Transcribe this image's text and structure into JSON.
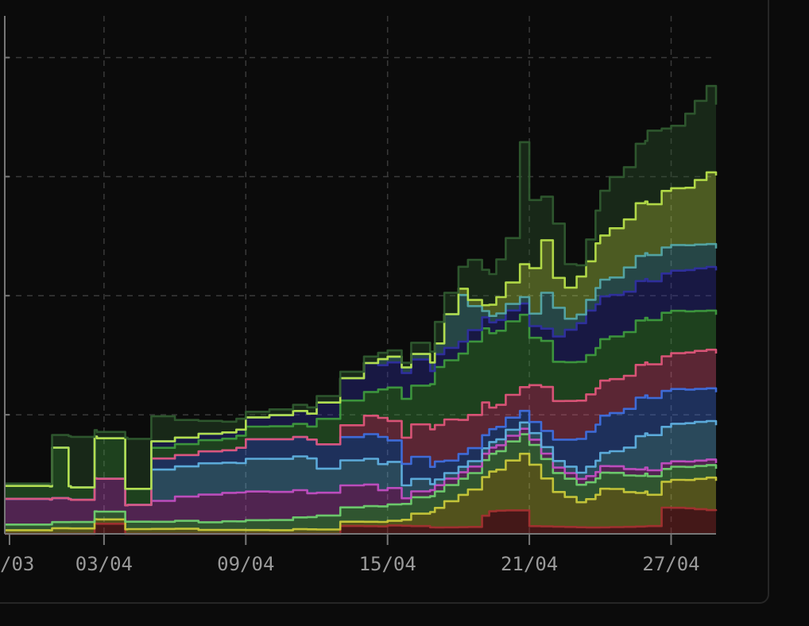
{
  "chart_data": {
    "type": "area",
    "stacked": true,
    "title": "",
    "xlabel": "",
    "ylabel": "",
    "x_ticks": [
      "/03",
      "03/04",
      "09/04",
      "15/04",
      "21/04",
      "27/04"
    ],
    "x_tick_days": [
      -4,
      0,
      6,
      12,
      18,
      24
    ],
    "x_range_days": [
      -4.2,
      25.9
    ],
    "y_ticks": [
      0,
      1,
      2,
      3,
      4
    ],
    "y_range": [
      0,
      4.35
    ],
    "y_tick_labels_visible": false,
    "grid": true,
    "grid_style": "dashed",
    "legend": "none",
    "knots_x": [
      -4.2,
      -2.3,
      -2.2,
      -1.5,
      -1.4,
      -0.4,
      -0.3,
      0.9,
      1.0,
      2.0,
      3.0,
      4.0,
      5.0,
      5.6,
      6.0,
      7.0,
      8.0,
      8.6,
      9.0,
      10.0,
      11.0,
      11.6,
      12.0,
      12.6,
      13.0,
      13.8,
      14.0,
      14.4,
      15.0,
      15.4,
      16.0,
      16.3,
      16.6,
      17.0,
      17.6,
      18.0,
      18.5,
      19.0,
      19.5,
      20.0,
      20.4,
      20.8,
      21.0,
      21.4,
      22.0,
      22.5,
      22.9,
      23.0,
      23.6,
      24.0,
      24.6,
      25.0,
      25.5,
      25.9
    ],
    "series": [
      {
        "color": "#a33030",
        "values": [
          0,
          0,
          0,
          0,
          0,
          0.08,
          0.08,
          0,
          0,
          0,
          0,
          0,
          0,
          0,
          0,
          0,
          0,
          0,
          0,
          0.06,
          0.06,
          0.06,
          0.07,
          0.07,
          0.07,
          0.06,
          0.06,
          0.06,
          0.06,
          0.06,
          0.15,
          0.18,
          0.18,
          0.18,
          0.18,
          0.06,
          0.06,
          0.06,
          0.06,
          0.06,
          0.06,
          0.06,
          0.06,
          0.06,
          0.06,
          0.06,
          0.06,
          0.06,
          0.2,
          0.2,
          0.2,
          0.2,
          0.2,
          0.2
        ]
      },
      {
        "color": "#c9c93a",
        "values": [
          0.03,
          0.03,
          0.05,
          0.05,
          0.05,
          0.04,
          0.04,
          0.04,
          0.04,
          0.04,
          0.04,
          0.03,
          0.03,
          0.03,
          0.03,
          0.03,
          0.04,
          0.04,
          0.04,
          0.04,
          0.04,
          0.04,
          0.04,
          0.05,
          0.1,
          0.12,
          0.15,
          0.2,
          0.25,
          0.3,
          0.32,
          0.34,
          0.36,
          0.44,
          0.5,
          0.54,
          0.42,
          0.3,
          0.25,
          0.2,
          0.22,
          0.25,
          0.3,
          0.3,
          0.28,
          0.28,
          0.3,
          0.28,
          0.24,
          0.26,
          0.26,
          0.27,
          0.28,
          0.25
        ]
      },
      {
        "color": "#6fd06f",
        "values": [
          0.05,
          0.05,
          0.05,
          0.05,
          0.05,
          0.06,
          0.06,
          0.06,
          0.06,
          0.06,
          0.07,
          0.07,
          0.08,
          0.08,
          0.09,
          0.09,
          0.1,
          0.1,
          0.11,
          0.11,
          0.12,
          0.12,
          0.13,
          0.13,
          0.14,
          0.14,
          0.15,
          0.15,
          0.15,
          0.15,
          0.15,
          0.15,
          0.15,
          0.15,
          0.15,
          0.15,
          0.15,
          0.15,
          0.15,
          0.15,
          0.15,
          0.15,
          0.15,
          0.15,
          0.15,
          0.15,
          0.15,
          0.15,
          0.1,
          0.1,
          0.1,
          0.1,
          0.1,
          0.1
        ]
      },
      {
        "color": "#c24fc2",
        "values": [
          0.2,
          0.2,
          0.2,
          0.2,
          0.2,
          0.3,
          0.3,
          0.15,
          0.15,
          0.18,
          0.2,
          0.22,
          0.22,
          0.22,
          0.22,
          0.22,
          0.22,
          0.2,
          0.2,
          0.2,
          0.2,
          0.15,
          0.15,
          0.05,
          0.05,
          0.05,
          0.05,
          0.05,
          0.05,
          0.05,
          0.05,
          0.05,
          0.05,
          0.05,
          0.05,
          0.05,
          0.05,
          0.05,
          0.05,
          0.05,
          0.05,
          0.05,
          0.05,
          0.05,
          0.05,
          0.05,
          0.05,
          0.05,
          0.05,
          0.05,
          0.05,
          0.05,
          0.05,
          0.05
        ]
      },
      {
        "color": "#5fb0e0",
        "values": [
          0,
          0,
          0,
          0,
          0,
          0,
          0,
          0,
          0,
          0.25,
          0.25,
          0.27,
          0.27,
          0.27,
          0.3,
          0.3,
          0.3,
          0.3,
          0.2,
          0.2,
          0.2,
          0.2,
          0.2,
          0.1,
          0.1,
          0.05,
          0.05,
          0.05,
          0.05,
          0.05,
          0.05,
          0.05,
          0.05,
          0.05,
          0.05,
          0.05,
          0.05,
          0.05,
          0.05,
          0.05,
          0.08,
          0.1,
          0.12,
          0.14,
          0.2,
          0.3,
          0.3,
          0.3,
          0.3,
          0.3,
          0.3,
          0.3,
          0.3,
          0.3
        ]
      },
      {
        "color": "#3f6fdf",
        "values": [
          0,
          0,
          0,
          0,
          0,
          0,
          0,
          0,
          0,
          0.1,
          0.1,
          0.1,
          0.1,
          0.12,
          0.15,
          0.15,
          0.15,
          0.15,
          0.2,
          0.2,
          0.22,
          0.25,
          0.2,
          0.2,
          0.2,
          0.15,
          0.15,
          0.1,
          0.1,
          0.1,
          0.1,
          0.1,
          0.1,
          0.1,
          0.1,
          0.1,
          0.15,
          0.2,
          0.25,
          0.3,
          0.3,
          0.3,
          0.3,
          0.3,
          0.3,
          0.3,
          0.3,
          0.3,
          0.3,
          0.3,
          0.3,
          0.3,
          0.3,
          0.3
        ]
      },
      {
        "color": "#e0557a",
        "values": [
          0,
          0,
          0,
          0,
          0,
          0,
          0,
          0,
          0,
          0,
          0,
          0,
          0,
          0,
          0,
          0,
          0,
          0,
          0,
          0.1,
          0.15,
          0.15,
          0.15,
          0.2,
          0.25,
          0.3,
          0.3,
          0.35,
          0.3,
          0.3,
          0.3,
          0.2,
          0.2,
          0.2,
          0.2,
          0.3,
          0.35,
          0.3,
          0.3,
          0.3,
          0.3,
          0.3,
          0.3,
          0.3,
          0.3,
          0.3,
          0.3,
          0.3,
          0.3,
          0.3,
          0.3,
          0.3,
          0.3,
          0.3
        ]
      },
      {
        "color": "#3e9a3e",
        "values": [
          0.1,
          0.1,
          0.4,
          0.1,
          0.1,
          0.35,
          0.35,
          0.15,
          0.15,
          0.1,
          0.1,
          0.1,
          0.1,
          0.1,
          0.1,
          0.1,
          0.1,
          0.1,
          0.2,
          0.2,
          0.2,
          0.25,
          0.3,
          0.35,
          0.35,
          0.4,
          0.5,
          0.5,
          0.55,
          0.6,
          0.6,
          0.6,
          0.6,
          0.6,
          0.6,
          0.4,
          0.4,
          0.35,
          0.35,
          0.35,
          0.35,
          0.35,
          0.35,
          0.35,
          0.35,
          0.35,
          0.35,
          0.35,
          0.35,
          0.35,
          0.35,
          0.35,
          0.35,
          0.35
        ]
      },
      {
        "color": "#2f2fa0",
        "values": [
          0,
          0,
          0,
          0,
          0,
          0,
          0,
          0,
          0,
          0.05,
          0.05,
          0.05,
          0.05,
          0.05,
          0.08,
          0.1,
          0.12,
          0.12,
          0.15,
          0.2,
          0.25,
          0.2,
          0.2,
          0.2,
          0.2,
          0.1,
          0.1,
          0.1,
          0.1,
          0.1,
          0.1,
          0.1,
          0.1,
          0.1,
          0.1,
          0.1,
          0.1,
          0.2,
          0.25,
          0.3,
          0.35,
          0.35,
          0.35,
          0.35,
          0.35,
          0.35,
          0.35,
          0.35,
          0.35,
          0.35,
          0.35,
          0.35,
          0.35,
          0.35
        ]
      },
      {
        "color": "#54a8a8",
        "values": [
          0,
          0,
          0,
          0,
          0,
          0,
          0,
          0,
          0,
          0,
          0,
          0,
          0,
          0,
          0,
          0,
          0,
          0,
          0,
          0,
          0,
          0.05,
          0.05,
          0.05,
          0.05,
          0.08,
          0.1,
          0.3,
          0.4,
          0.2,
          0.05,
          0.05,
          0.05,
          0.05,
          0.05,
          0.1,
          0.3,
          0.25,
          0.1,
          0.08,
          0.1,
          0.15,
          0.15,
          0.15,
          0.2,
          0.2,
          0.2,
          0.2,
          0.2,
          0.2,
          0.2,
          0.2,
          0.2,
          0.2
        ]
      },
      {
        "color": "#b7e04a",
        "values": [
          0,
          0,
          0,
          0,
          0,
          0,
          0,
          0,
          0,
          0,
          0,
          0,
          0,
          0,
          0,
          0,
          0,
          0,
          0,
          0,
          0,
          0,
          0,
          0,
          0,
          0,
          0,
          0,
          0.05,
          0.05,
          0.05,
          0.1,
          0.15,
          0.2,
          0.3,
          0.4,
          0.45,
          0.25,
          0.25,
          0.3,
          0.3,
          0.35,
          0.35,
          0.4,
          0.4,
          0.45,
          0.45,
          0.45,
          0.5,
          0.5,
          0.5,
          0.55,
          0.6,
          0.6
        ]
      },
      {
        "color": "#2f5a2f",
        "values": [
          0.02,
          0.02,
          0.1,
          0.4,
          0.4,
          0.05,
          0.05,
          0.42,
          0.42,
          0.22,
          0.16,
          0.12,
          0.1,
          0.1,
          0.05,
          0.05,
          0.05,
          0.05,
          0.05,
          0.05,
          0.05,
          0.05,
          0.05,
          0.04,
          0.1,
          0.1,
          0.2,
          0.2,
          0.2,
          0.35,
          0.3,
          0.25,
          0.3,
          0.35,
          1.0,
          0.55,
          0.35,
          0.45,
          0.2,
          0.1,
          0.2,
          0.3,
          0.4,
          0.45,
          0.45,
          0.5,
          0.5,
          0.6,
          0.5,
          0.5,
          0.6,
          0.65,
          0.72,
          0.6
        ]
      }
    ]
  }
}
